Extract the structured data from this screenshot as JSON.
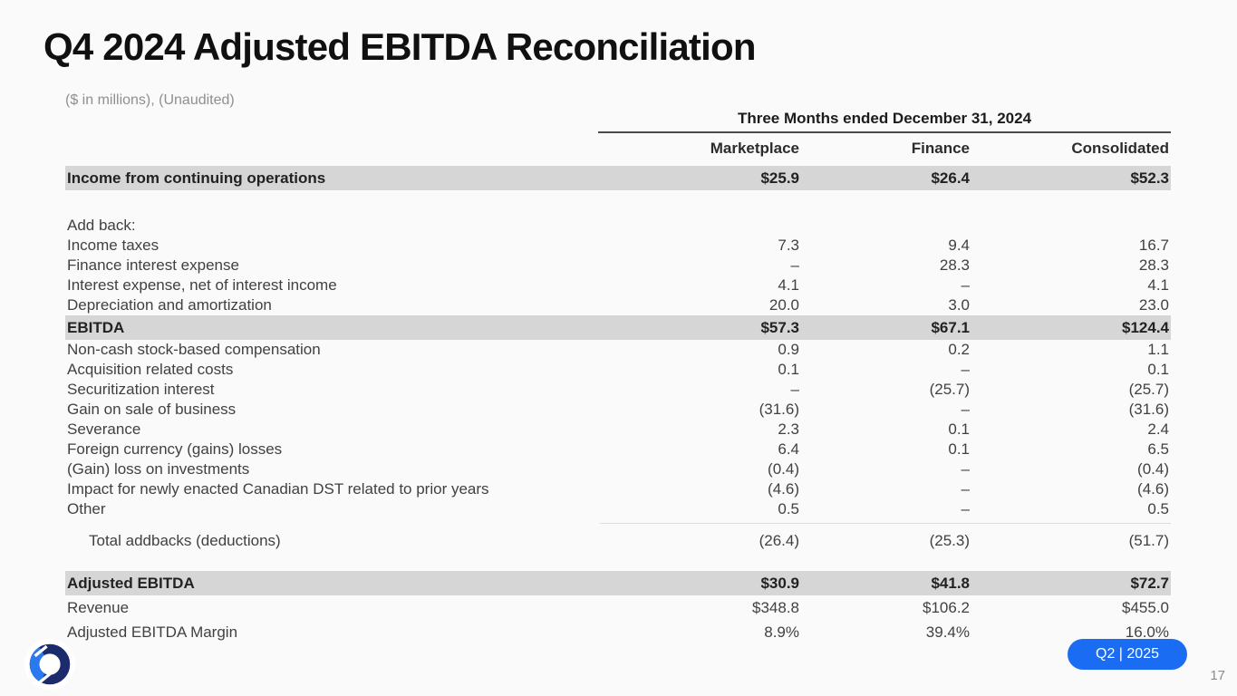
{
  "slide": {
    "title": "Q4 2024 Adjusted EBITDA Reconciliation",
    "subtitle": "($ in millions), (Unaudited)",
    "badge_label": "Q2 | 2025",
    "page_number": "17",
    "logo": "ring-logo"
  },
  "colors": {
    "accent_blue": "#1a6cf3",
    "highlight_row": "#d6d6d6",
    "logo_navy": "#1b2b6b",
    "logo_blue": "#2b79f0"
  },
  "table": {
    "period_header": "Three Months ended December 31, 2024",
    "columns": [
      "Marketplace",
      "Finance",
      "Consolidated"
    ],
    "rows": [
      {
        "label": "Income from continuing operations",
        "values": [
          "$25.9",
          "$26.4",
          "$52.3"
        ],
        "style": "highlight"
      },
      {
        "style": "spacer"
      },
      {
        "label": "Add back:",
        "values": [
          "",
          "",
          ""
        ],
        "style": "normal"
      },
      {
        "label": "Income taxes",
        "values": [
          "7.3",
          "9.4",
          "16.7"
        ],
        "style": "normal"
      },
      {
        "label": "Finance interest expense",
        "values": [
          "–",
          "28.3",
          "28.3"
        ],
        "style": "normal"
      },
      {
        "label": "Interest expense, net of interest income",
        "values": [
          "4.1",
          "–",
          "4.1"
        ],
        "style": "normal"
      },
      {
        "label": "Depreciation and amortization",
        "values": [
          "20.0",
          "3.0",
          "23.0"
        ],
        "style": "normal"
      },
      {
        "label": "EBITDA",
        "values": [
          "$57.3",
          "$67.1",
          "$124.4"
        ],
        "style": "highlight"
      },
      {
        "label": "Non-cash stock-based compensation",
        "values": [
          "0.9",
          "0.2",
          "1.1"
        ],
        "style": "normal"
      },
      {
        "label": "Acquisition related costs",
        "values": [
          "0.1",
          "–",
          "0.1"
        ],
        "style": "normal"
      },
      {
        "label": "Securitization interest",
        "values": [
          "–",
          "(25.7)",
          "(25.7)"
        ],
        "style": "normal"
      },
      {
        "label": "Gain on sale of business",
        "values": [
          "(31.6)",
          "–",
          "(31.6)"
        ],
        "style": "normal"
      },
      {
        "label": "Severance",
        "values": [
          "2.3",
          "0.1",
          "2.4"
        ],
        "style": "normal"
      },
      {
        "label": "Foreign currency (gains) losses",
        "values": [
          "6.4",
          "0.1",
          "6.5"
        ],
        "style": "normal"
      },
      {
        "label": "(Gain) loss on investments",
        "values": [
          "(0.4)",
          "–",
          "(0.4)"
        ],
        "style": "normal"
      },
      {
        "label": "Impact for newly enacted Canadian DST related to prior years",
        "values": [
          "(4.6)",
          "–",
          "(4.6)"
        ],
        "style": "normal"
      },
      {
        "label": "Other",
        "values": [
          "0.5",
          "–",
          "0.5"
        ],
        "style": "normal"
      },
      {
        "style": "rule"
      },
      {
        "label": "Total addbacks (deductions)",
        "values": [
          "(26.4)",
          "(25.3)",
          "(51.7)"
        ],
        "style": "total",
        "indent": true
      },
      {
        "label": "Adjusted EBITDA",
        "values": [
          "$30.9",
          "$41.8",
          "$72.7"
        ],
        "style": "highlight"
      },
      {
        "label": "Revenue",
        "values": [
          "$348.8",
          "$106.2",
          "$455.0"
        ],
        "style": "tall"
      },
      {
        "label": "Adjusted EBITDA Margin",
        "values": [
          "8.9%",
          "39.4%",
          "16.0%"
        ],
        "style": "tall"
      }
    ]
  }
}
